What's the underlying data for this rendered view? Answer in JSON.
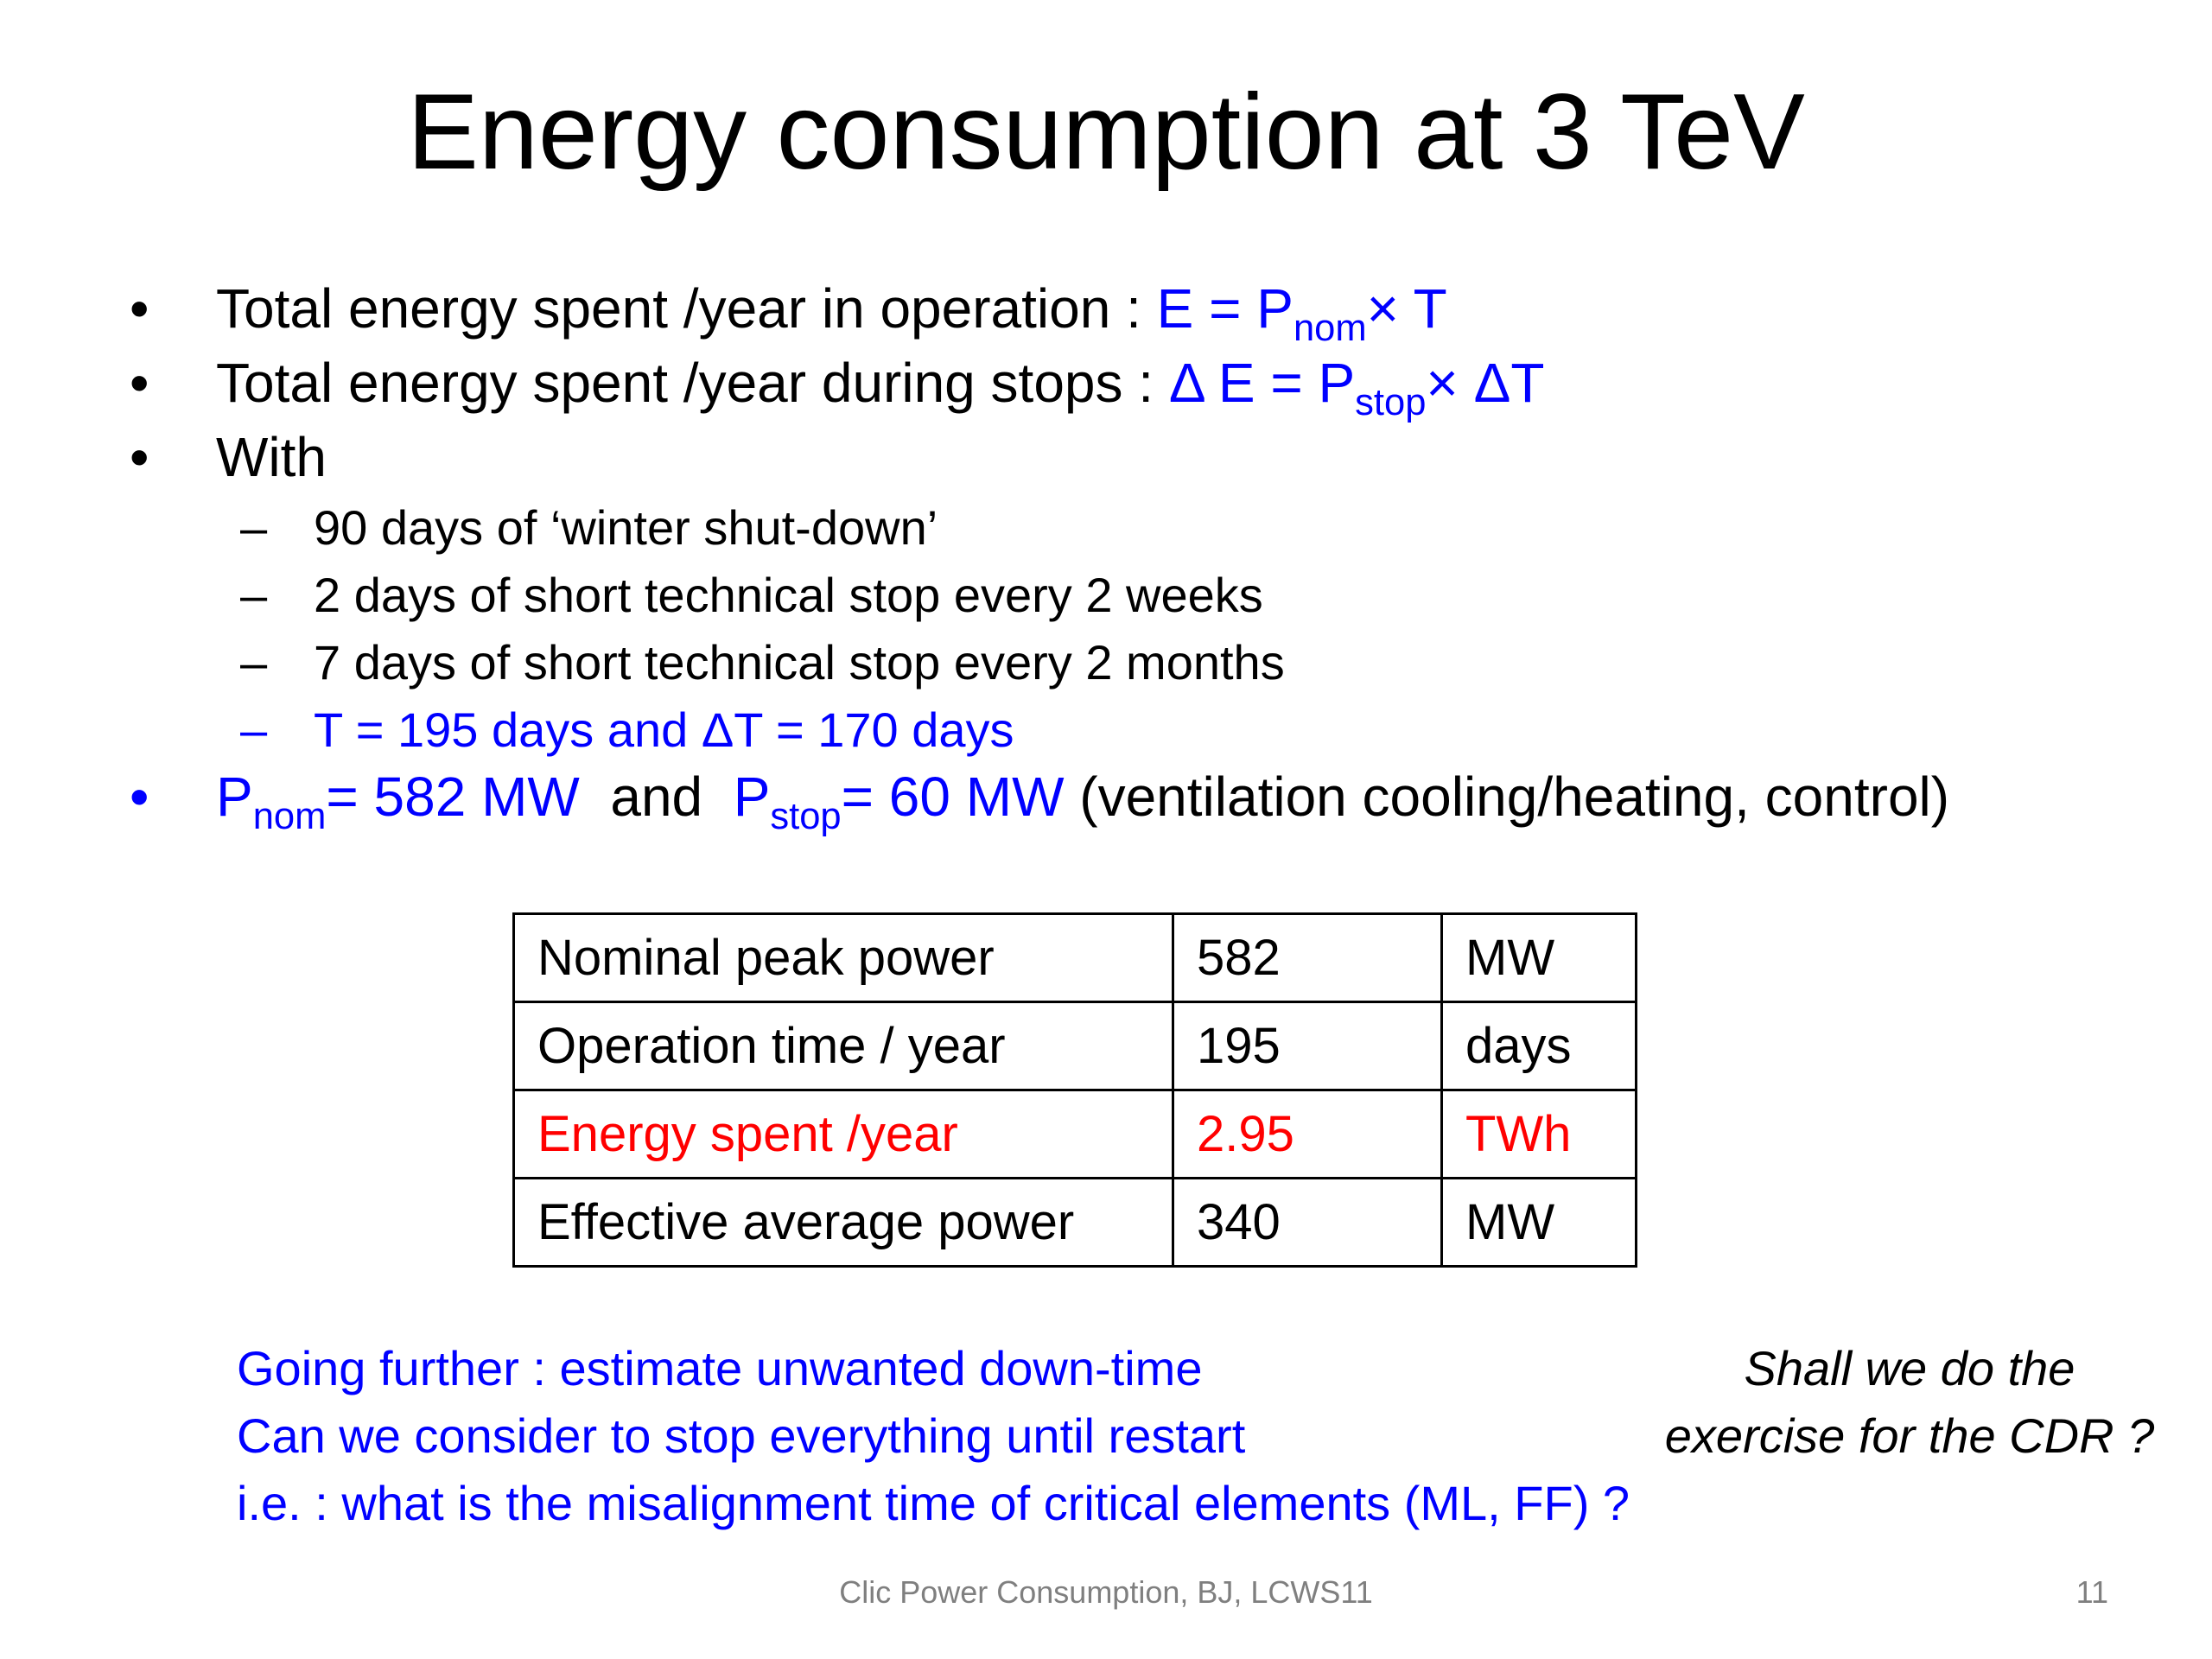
{
  "slide": {
    "title": "Energy consumption at 3 TeV",
    "bullets": [
      {
        "marker": "•",
        "text": "Total energy spent /year in operation : ",
        "formula_pre": "E = P",
        "formula_sub": "nom",
        "formula_post": "× T"
      },
      {
        "marker": "•",
        "text": "Total energy spent /year during stops : ",
        "formula_pre": "Δ E = P",
        "formula_sub": "stop",
        "formula_post": "× ΔT"
      },
      {
        "marker": "•",
        "text": "With"
      }
    ],
    "subbullets": [
      {
        "marker": "–",
        "text": "90 days of ‘winter shut-down’"
      },
      {
        "marker": "–",
        "text": "2 days of short technical stop every 2 weeks"
      },
      {
        "marker": "–",
        "text": "7 days  of short technical stop every 2 months"
      },
      {
        "marker": "–",
        "text": "T = 195 days and ΔT = 170 days"
      }
    ],
    "power_bullet": {
      "marker": "•",
      "pnom_pre": "P",
      "pnom_sub": "nom",
      "pnom_post": "= 582 MW",
      "and": "  and  ",
      "pstop_pre": "P",
      "pstop_sub": "stop",
      "pstop_post": "= 60 MW",
      "note": " (ventilation cooling/heating, control)"
    },
    "table": {
      "rows": [
        {
          "label": "Nominal peak power",
          "value": "582",
          "unit": "MW"
        },
        {
          "label": "Operation time / year",
          "value": "195",
          "unit": "days"
        },
        {
          "label": "Energy spent /year",
          "value": "2.95",
          "unit": "TWh"
        },
        {
          "label": "Effective average power",
          "value": "340",
          "unit": "MW"
        }
      ]
    },
    "further": [
      "Going further : estimate unwanted down-time",
      "Can we consider to stop everything until restart",
      "i.e. :  what is the misalignment time of critical elements (ML, FF) ?"
    ],
    "aside": [
      "Shall we do the",
      "exercise for the CDR ?"
    ],
    "footer": "Clic Power Consumption, BJ,  LCWS11",
    "page_number": "11"
  },
  "colors": {
    "accent_blue": "#0000ff",
    "highlight_red": "#ff0000",
    "footer_gray": "#7f7f7f"
  }
}
